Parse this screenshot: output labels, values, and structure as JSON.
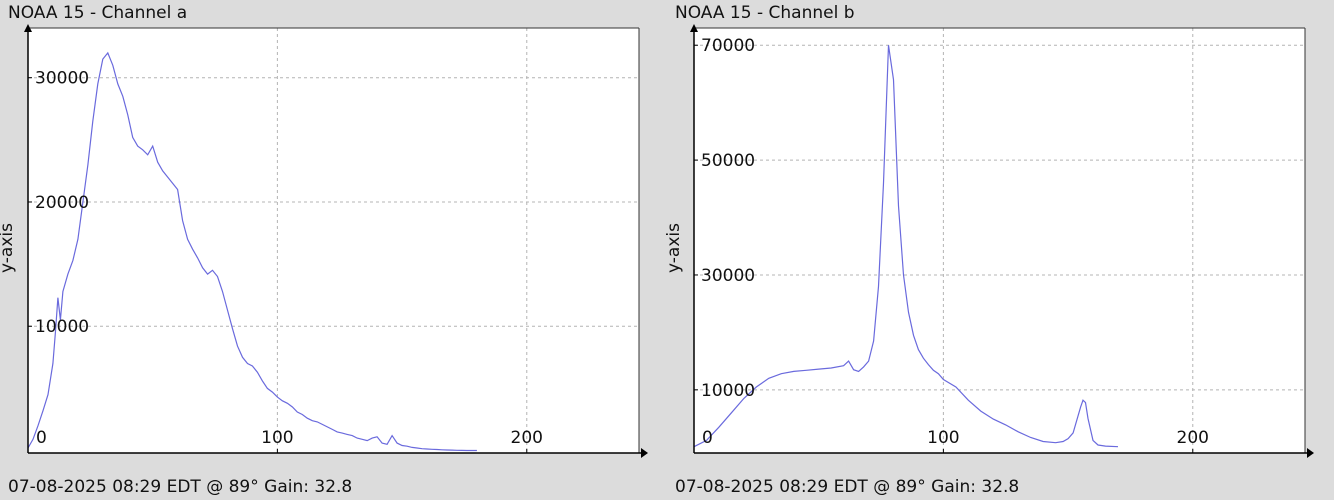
{
  "panels": [
    {
      "title": "NOAA 15 - Channel a",
      "footer": "07-08-2025 08:29 EDT @ 89° Gain: 32.8",
      "ylabel": "y-axis"
    },
    {
      "title": "NOAA 15 - Channel b",
      "footer": "07-08-2025 08:29 EDT @ 89° Gain: 32.8",
      "ylabel": "y-axis"
    }
  ],
  "colors": {
    "line": "#6a6add",
    "grid": "#b4b4b4",
    "axis": "#000000",
    "plot_bg": "#ffffff",
    "page_bg": "#dcdcdc"
  },
  "chart_data": [
    {
      "type": "line",
      "title": "NOAA 15 - Channel a",
      "xlabel": "",
      "ylabel": "y-axis",
      "xlim": [
        0,
        245
      ],
      "ylim": [
        -200,
        34000
      ],
      "grid": true,
      "x_ticks": [
        0,
        100,
        200
      ],
      "x_tick_labels": [
        "0",
        "100",
        "200"
      ],
      "y_ticks": [
        10000,
        20000,
        30000
      ],
      "y_tick_labels": [
        "10000",
        "20000",
        "30000"
      ],
      "x": [
        0,
        2,
        4,
        6,
        8,
        10,
        11,
        12,
        13,
        14,
        16,
        18,
        20,
        22,
        24,
        26,
        28,
        30,
        32,
        34,
        36,
        38,
        40,
        42,
        44,
        46,
        48,
        50,
        52,
        54,
        56,
        58,
        60,
        62,
        64,
        66,
        68,
        70,
        72,
        74,
        76,
        78,
        80,
        82,
        84,
        86,
        88,
        90,
        92,
        94,
        96,
        98,
        100,
        102,
        104,
        106,
        108,
        110,
        112,
        114,
        116,
        118,
        120,
        122,
        124,
        126,
        128,
        130,
        132,
        134,
        136,
        138,
        140,
        142,
        144,
        146,
        148,
        150,
        152,
        154,
        156,
        158,
        160,
        162,
        164,
        166,
        168,
        170,
        172,
        174,
        176,
        178,
        180
      ],
      "y": [
        200,
        900,
        2000,
        3200,
        4500,
        7000,
        9500,
        12300,
        10500,
        12800,
        14200,
        15300,
        17000,
        20000,
        23000,
        26500,
        29500,
        31500,
        32000,
        31000,
        29500,
        28500,
        27000,
        25200,
        24500,
        24200,
        23800,
        24500,
        23200,
        22500,
        22000,
        21500,
        21000,
        18500,
        17000,
        16200,
        15500,
        14700,
        14200,
        14500,
        14000,
        12800,
        11300,
        9800,
        8400,
        7500,
        7000,
        6800,
        6300,
        5600,
        5000,
        4700,
        4300,
        4000,
        3800,
        3500,
        3100,
        2900,
        2600,
        2400,
        2300,
        2100,
        1900,
        1700,
        1500,
        1400,
        1300,
        1200,
        1000,
        900,
        800,
        1000,
        1100,
        600,
        500,
        1200,
        600,
        400,
        350,
        250,
        200,
        150,
        120,
        100,
        80,
        60,
        40,
        30,
        20,
        10,
        5,
        5,
        5
      ]
    },
    {
      "type": "line",
      "title": "NOAA 15 - Channel b",
      "xlabel": "",
      "ylabel": "y-axis",
      "xlim": [
        0,
        245
      ],
      "ylim": [
        -1000,
        73000
      ],
      "grid": true,
      "x_ticks": [
        0,
        100,
        200
      ],
      "x_tick_labels": [
        "0",
        "100",
        "200"
      ],
      "y_ticks": [
        10000,
        30000,
        50000,
        70000
      ],
      "y_tick_labels": [
        "10000",
        "30000",
        "50000",
        "70000"
      ],
      "x": [
        0,
        5,
        10,
        15,
        20,
        25,
        30,
        35,
        40,
        45,
        50,
        55,
        60,
        62,
        64,
        66,
        68,
        70,
        72,
        74,
        76,
        78,
        80,
        82,
        84,
        86,
        88,
        90,
        92,
        94,
        96,
        98,
        100,
        105,
        110,
        115,
        120,
        125,
        130,
        135,
        140,
        145,
        148,
        150,
        152,
        154,
        155,
        156,
        157,
        158,
        160,
        162,
        165,
        170
      ],
      "y": [
        100,
        1200,
        3500,
        6000,
        8500,
        10500,
        12000,
        12800,
        13200,
        13400,
        13600,
        13800,
        14200,
        15000,
        13500,
        13200,
        14000,
        15000,
        18500,
        28000,
        46000,
        70000,
        64000,
        42000,
        30000,
        23500,
        19500,
        17000,
        15500,
        14400,
        13400,
        12800,
        11800,
        10500,
        8200,
        6300,
        4900,
        3900,
        2700,
        1700,
        1000,
        800,
        1000,
        1500,
        2500,
        5500,
        7000,
        8200,
        7800,
        5000,
        1200,
        400,
        200,
        100
      ]
    }
  ]
}
